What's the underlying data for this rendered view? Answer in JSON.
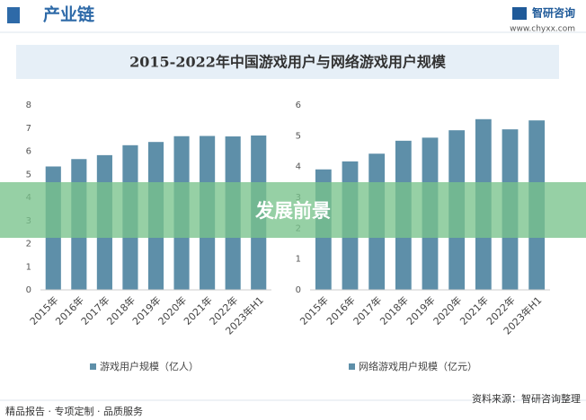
{
  "header": {
    "title": "产业链",
    "brand": "智研咨询",
    "url": "www.chyxx.com"
  },
  "title": "2015-2022年中国游戏用户与网络游戏用户规模",
  "banner": "发展前景",
  "footer": {
    "left": "精品报告 · 专项定制 · 品质服务",
    "source": "资料来源：智研咨询整理"
  },
  "chart_data": [
    {
      "type": "bar",
      "categories": [
        "2015年",
        "2016年",
        "2017年",
        "2018年",
        "2019年",
        "2020年",
        "2021年",
        "2022年",
        "2023年H1"
      ],
      "series": [
        {
          "name": "游戏用户规模（亿人）",
          "color": "#5e8fa9",
          "values": [
            5.34,
            5.66,
            5.83,
            6.26,
            6.4,
            6.65,
            6.66,
            6.64,
            6.68
          ]
        }
      ],
      "ylim": [
        0,
        8
      ],
      "yticks": [
        0,
        1,
        2,
        3,
        4,
        5,
        6,
        7,
        8
      ]
    },
    {
      "type": "bar",
      "categories": [
        "2015年",
        "2016年",
        "2017年",
        "2018年",
        "2019年",
        "2020年",
        "2021年",
        "2022年",
        "2023年H1"
      ],
      "series": [
        {
          "name": "网络游戏用户规模（亿元）",
          "color": "#5e8fa9",
          "values": [
            3.91,
            4.17,
            4.42,
            4.84,
            4.94,
            5.18,
            5.54,
            5.21,
            5.5
          ]
        }
      ],
      "ylim": [
        0,
        6
      ],
      "yticks": [
        0,
        1,
        2,
        3,
        4,
        5,
        6
      ]
    }
  ]
}
